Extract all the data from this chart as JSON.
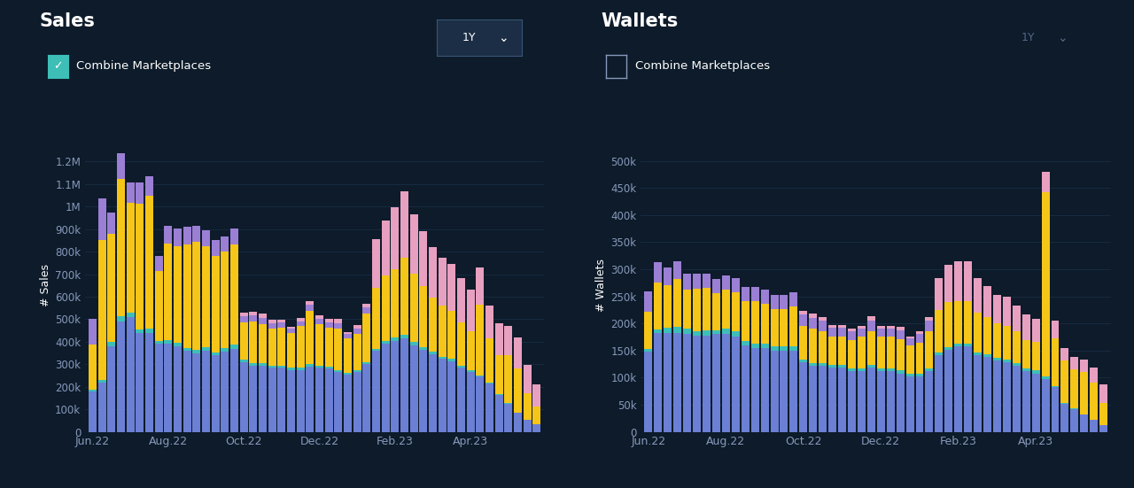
{
  "background_color": "#0d1b2a",
  "title_color": "#ffffff",
  "axis_color": "#ffffff",
  "grid_color": "#1a2e45",
  "tick_color": "#8899bb",
  "sales_title": "Sales",
  "wallets_title": "Wallets",
  "sales_ylabel": "# Sales",
  "wallets_ylabel": "# Wallets",
  "checkbox_label": "Combine Marketplaces",
  "period_label": "1Y",
  "x_labels": [
    "Jun.22",
    "Aug.22",
    "Oct.22",
    "Dec.22",
    "Feb.23",
    "Apr.23"
  ],
  "n_bars": 48,
  "color_blue": "#6b7fd4",
  "color_teal": "#3dbfb8",
  "color_yellow": "#f5c518",
  "color_purple": "#9b7fd4",
  "color_pink": "#e8a0c0",
  "sales_blue": [
    180000,
    220000,
    380000,
    490000,
    510000,
    440000,
    440000,
    390000,
    390000,
    380000,
    360000,
    350000,
    360000,
    340000,
    355000,
    370000,
    310000,
    295000,
    295000,
    285000,
    285000,
    275000,
    275000,
    290000,
    285000,
    280000,
    265000,
    255000,
    265000,
    300000,
    360000,
    390000,
    405000,
    415000,
    385000,
    365000,
    345000,
    325000,
    315000,
    285000,
    265000,
    245000,
    215000,
    165000,
    125000,
    85000,
    55000,
    35000
  ],
  "sales_teal": [
    8000,
    10000,
    18000,
    22000,
    18000,
    14000,
    18000,
    13000,
    18000,
    16000,
    13000,
    13000,
    16000,
    13000,
    16000,
    16000,
    10000,
    9000,
    9000,
    9000,
    9000,
    9000,
    9000,
    11000,
    9000,
    9000,
    9000,
    7000,
    7000,
    9000,
    10000,
    13000,
    16000,
    18000,
    16000,
    13000,
    10000,
    9000,
    9000,
    7000,
    7000,
    5000,
    4000,
    2500,
    1500,
    800,
    400,
    150
  ],
  "sales_yellow": [
    200000,
    620000,
    480000,
    610000,
    490000,
    560000,
    590000,
    310000,
    430000,
    430000,
    460000,
    480000,
    450000,
    430000,
    430000,
    445000,
    165000,
    185000,
    175000,
    165000,
    168000,
    155000,
    185000,
    235000,
    185000,
    175000,
    185000,
    155000,
    165000,
    215000,
    270000,
    290000,
    300000,
    340000,
    300000,
    270000,
    240000,
    225000,
    215000,
    195000,
    175000,
    315000,
    195000,
    175000,
    215000,
    195000,
    115000,
    78000
  ],
  "sales_purple": [
    115000,
    185000,
    95000,
    115000,
    88000,
    95000,
    88000,
    68000,
    78000,
    78000,
    78000,
    72000,
    68000,
    68000,
    68000,
    72000,
    28000,
    28000,
    28000,
    23000,
    23000,
    18000,
    23000,
    28000,
    23000,
    23000,
    23000,
    18000,
    23000,
    28000,
    0,
    0,
    0,
    0,
    0,
    0,
    0,
    0,
    0,
    0,
    0,
    0,
    0,
    0,
    0,
    0,
    0,
    0
  ],
  "sales_pink": [
    0,
    0,
    0,
    0,
    0,
    0,
    0,
    0,
    0,
    0,
    0,
    0,
    0,
    0,
    0,
    0,
    18000,
    18000,
    18000,
    16000,
    14000,
    11000,
    14000,
    18000,
    14000,
    14000,
    18000,
    9000,
    14000,
    18000,
    215000,
    245000,
    275000,
    295000,
    265000,
    245000,
    225000,
    215000,
    205000,
    195000,
    185000,
    165000,
    148000,
    138000,
    128000,
    138000,
    128000,
    98000
  ],
  "wallets_blue": [
    148000,
    182000,
    182000,
    182000,
    180000,
    178000,
    178000,
    180000,
    180000,
    175000,
    160000,
    155000,
    155000,
    150000,
    150000,
    150000,
    128000,
    122000,
    122000,
    118000,
    118000,
    112000,
    112000,
    118000,
    112000,
    112000,
    108000,
    102000,
    102000,
    112000,
    142000,
    152000,
    158000,
    158000,
    142000,
    138000,
    132000,
    128000,
    122000,
    112000,
    108000,
    98000,
    82000,
    52000,
    42000,
    32000,
    22000,
    12000
  ],
  "wallets_teal": [
    5000,
    7000,
    10000,
    12000,
    10000,
    8000,
    10000,
    8000,
    10000,
    10000,
    8000,
    8000,
    8000,
    8000,
    8000,
    8000,
    5000,
    5000,
    5000,
    5000,
    5000,
    5000,
    5000,
    5000,
    5000,
    5000,
    5000,
    5000,
    5000,
    5000,
    5000,
    5000,
    5000,
    5000,
    5000,
    5000,
    5000,
    5000,
    5000,
    5000,
    5000,
    4000,
    3000,
    2000,
    1000,
    500,
    200,
    100
  ],
  "wallets_yellow": [
    68000,
    86000,
    78000,
    88000,
    73000,
    78000,
    78000,
    68000,
    73000,
    73000,
    73000,
    78000,
    73000,
    68000,
    68000,
    73000,
    63000,
    63000,
    58000,
    53000,
    53000,
    53000,
    58000,
    63000,
    58000,
    58000,
    58000,
    53000,
    58000,
    68000,
    78000,
    83000,
    78000,
    78000,
    73000,
    68000,
    63000,
    63000,
    58000,
    53000,
    53000,
    340000,
    88000,
    78000,
    73000,
    78000,
    68000,
    42000
  ],
  "wallets_purple": [
    38000,
    38000,
    33000,
    33000,
    28000,
    28000,
    26000,
    26000,
    26000,
    26000,
    26000,
    26000,
    26000,
    26000,
    26000,
    26000,
    20000,
    20000,
    20000,
    16000,
    16000,
    16000,
    16000,
    20000,
    16000,
    16000,
    16000,
    13000,
    16000,
    20000,
    0,
    0,
    0,
    0,
    0,
    0,
    0,
    0,
    0,
    0,
    0,
    0,
    0,
    0,
    0,
    0,
    0,
    0
  ],
  "wallets_pink": [
    0,
    0,
    0,
    0,
    0,
    0,
    0,
    0,
    0,
    0,
    0,
    0,
    0,
    0,
    0,
    0,
    7500,
    7500,
    7500,
    5500,
    4500,
    4500,
    4500,
    7500,
    4500,
    4500,
    6500,
    3500,
    4500,
    7500,
    58000,
    68000,
    73000,
    73000,
    63000,
    58000,
    53000,
    53000,
    48000,
    46000,
    43000,
    38000,
    33000,
    23000,
    23000,
    23000,
    28000,
    33000
  ],
  "sales_ylim": [
    0,
    1300000
  ],
  "wallets_ylim": [
    0,
    540000
  ],
  "sales_yticks": [
    0,
    100000,
    200000,
    300000,
    400000,
    500000,
    600000,
    700000,
    800000,
    900000,
    1000000,
    1100000,
    1200000
  ],
  "wallets_yticks": [
    0,
    50000,
    100000,
    150000,
    200000,
    250000,
    300000,
    350000,
    400000,
    450000,
    500000
  ],
  "sales_ytick_labels": [
    "0",
    "100k",
    "200k",
    "300k",
    "400k",
    "500k",
    "600k",
    "700k",
    "800k",
    "900k",
    "1M",
    "1.1M",
    "1.2M"
  ],
  "wallets_ytick_labels": [
    "0",
    "50k",
    "100k",
    "150k",
    "200k",
    "250k",
    "300k",
    "350k",
    "400k",
    "450k",
    "500k"
  ]
}
